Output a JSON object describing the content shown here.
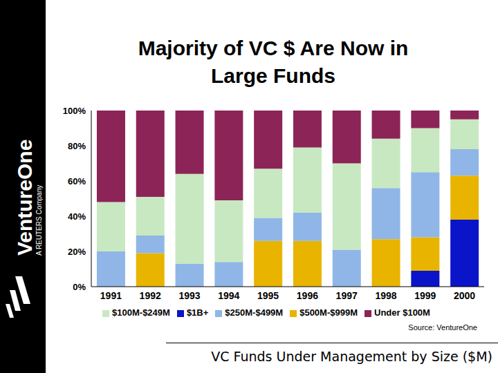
{
  "chart_data": {
    "type": "bar",
    "title": "Majority of VC $ Are Now in Large Funds",
    "stacked": true,
    "grid": false,
    "legend": "bottom",
    "categories": [
      "1991",
      "1992",
      "1993",
      "1994",
      "1995",
      "1996",
      "1997",
      "1998",
      "1999",
      "2000"
    ],
    "ylim": [
      0,
      100
    ],
    "yticks": [
      {
        "value": 0,
        "label": "0%"
      },
      {
        "value": 20,
        "label": "20%"
      },
      {
        "value": 40,
        "label": "40%"
      },
      {
        "value": 60,
        "label": "60%"
      },
      {
        "value": 80,
        "label": "80%"
      },
      {
        "value": 100,
        "label": "100%"
      }
    ],
    "series": [
      {
        "name": "$1B+",
        "color": "#0a14c8",
        "values": [
          0,
          0,
          0,
          0,
          0,
          0,
          0,
          0,
          9,
          38
        ]
      },
      {
        "name": "$500M-$999M",
        "color": "#e8b400",
        "values": [
          0,
          19,
          0,
          0,
          26,
          26,
          0,
          27,
          19,
          25
        ]
      },
      {
        "name": "$250M-$499M",
        "color": "#8fb6e6",
        "values": [
          20,
          10,
          13,
          14,
          13,
          16,
          21,
          29,
          37,
          15
        ]
      },
      {
        "name": "$100M-$249M",
        "color": "#c8e8c2",
        "values": [
          28,
          22,
          51,
          35,
          28,
          37,
          49,
          28,
          25,
          17
        ]
      },
      {
        "name": "Under $100M",
        "color": "#8c2457",
        "values": [
          52,
          49,
          36,
          51,
          33,
          21,
          30,
          16,
          10,
          5
        ]
      }
    ],
    "annotations": [
      "Source: VentureOne"
    ]
  },
  "logo": {
    "name": "VentureOne",
    "tagline": "A REUTERS Company"
  },
  "footer": "VC Funds Under Management by Size ($M)"
}
